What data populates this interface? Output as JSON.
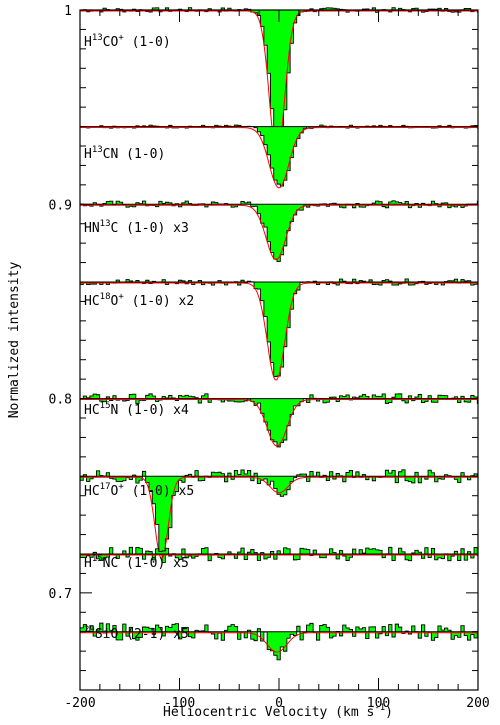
{
  "chart_data": {
    "type": "area",
    "xlabel": "Heliocentric Velocity (km s",
    "xlabel_sup": "-1",
    "xlabel_close": ")",
    "ylabel": "Normalized intensity",
    "xlim": [
      -200,
      200
    ],
    "ylim": [
      0.65,
      1.0
    ],
    "x_ticks": [
      "-200",
      "-100",
      "0",
      "100",
      "200"
    ],
    "y_ticks": [
      "1",
      "0.9",
      "0.8",
      "0.7"
    ],
    "fill_color": "#00ff00",
    "fit_color": "#ff0000",
    "spectrum_color": "#000000",
    "series": [
      {
        "name_parts": [
          [
            "H",
            ""
          ],
          [
            "13",
            "sup"
          ],
          [
            "CO",
            ""
          ],
          [
            "+",
            "sup"
          ],
          [
            " (1-0)",
            ""
          ]
        ],
        "baseline": 1.0,
        "depth": 0.074,
        "center": -2,
        "width": 7,
        "noise": 0.0012,
        "extra": []
      },
      {
        "name_parts": [
          [
            "H",
            ""
          ],
          [
            "13",
            "sup"
          ],
          [
            "CN (1-0)",
            ""
          ]
        ],
        "baseline": 0.94,
        "depth": 0.031,
        "center": 0,
        "width": 9,
        "noise": 0.0008,
        "extra": []
      },
      {
        "name_parts": [
          [
            "HN",
            ""
          ],
          [
            "13",
            "sup"
          ],
          [
            "C (1-0) x3",
            ""
          ]
        ],
        "baseline": 0.9,
        "depth": 0.028,
        "center": -3,
        "width": 9,
        "noise": 0.0018,
        "extra": []
      },
      {
        "name_parts": [
          [
            "HC",
            ""
          ],
          [
            "18",
            "sup"
          ],
          [
            "O",
            ""
          ],
          [
            "+",
            "sup"
          ],
          [
            " (1-0) x2",
            ""
          ]
        ],
        "baseline": 0.86,
        "depth": 0.05,
        "center": -3,
        "width": 8,
        "noise": 0.0016,
        "extra": []
      },
      {
        "name_parts": [
          [
            "HC",
            ""
          ],
          [
            "15",
            "sup"
          ],
          [
            "N (1-0) x4",
            ""
          ]
        ],
        "baseline": 0.8,
        "depth": 0.024,
        "center": -2,
        "width": 9,
        "noise": 0.0025,
        "extra": []
      },
      {
        "name_parts": [
          [
            "HC",
            ""
          ],
          [
            "17",
            "sup"
          ],
          [
            "O",
            ""
          ],
          [
            "+",
            "sup"
          ],
          [
            " (1-0) x5",
            ""
          ]
        ],
        "baseline": 0.76,
        "depth": 0.042,
        "center": -118,
        "width": 6,
        "noise": 0.0035,
        "extra": [
          {
            "center": 0,
            "depth": 0.008,
            "width": 9
          }
        ]
      },
      {
        "name_parts": [
          [
            "H",
            ""
          ],
          [
            "15",
            "sup"
          ],
          [
            "NC (1-0) x5",
            ""
          ]
        ],
        "baseline": 0.72,
        "depth": 0.0,
        "center": 0,
        "width": 9,
        "noise": 0.0035,
        "extra": []
      },
      {
        "name_parts": [
          [
            "",
            ""
          ],
          [
            "29",
            "sup"
          ],
          [
            "SiO (2-1) x5",
            ""
          ]
        ],
        "baseline": 0.68,
        "depth": 0.01,
        "center": -2,
        "width": 9,
        "noise": 0.0045,
        "extra": []
      }
    ]
  }
}
